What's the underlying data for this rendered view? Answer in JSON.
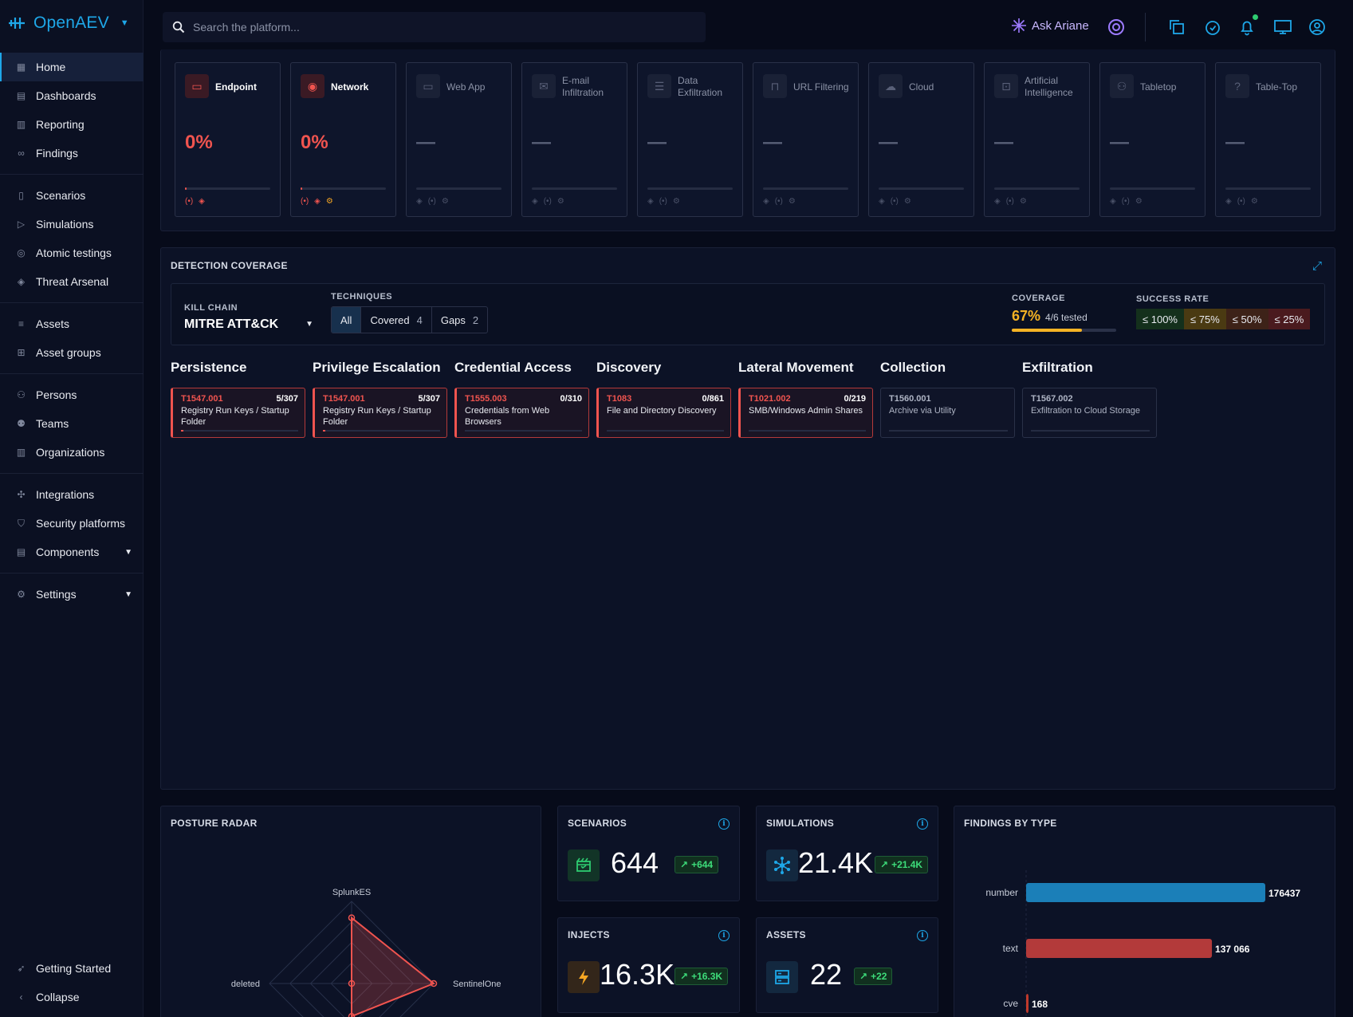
{
  "app": {
    "name": "OpenAEV"
  },
  "sidebar": {
    "groups": [
      [
        {
          "label": "Home",
          "icon": "grid-icon",
          "active": true
        },
        {
          "label": "Dashboards",
          "icon": "dashboard-icon"
        },
        {
          "label": "Reporting",
          "icon": "report-icon"
        },
        {
          "label": "Findings",
          "icon": "binoculars-icon"
        }
      ],
      [
        {
          "label": "Scenarios",
          "icon": "movie-icon"
        },
        {
          "label": "Simulations",
          "icon": "play-icon"
        },
        {
          "label": "Atomic testings",
          "icon": "target-icon"
        },
        {
          "label": "Threat Arsenal",
          "icon": "layers-icon"
        }
      ],
      [
        {
          "label": "Assets",
          "icon": "server-icon"
        },
        {
          "label": "Asset groups",
          "icon": "group-icon"
        }
      ],
      [
        {
          "label": "Persons",
          "icon": "person-icon"
        },
        {
          "label": "Teams",
          "icon": "team-icon"
        },
        {
          "label": "Organizations",
          "icon": "building-icon"
        }
      ],
      [
        {
          "label": "Integrations",
          "icon": "puzzle-icon"
        },
        {
          "label": "Security platforms",
          "icon": "shield-icon"
        },
        {
          "label": "Components",
          "icon": "components-icon",
          "caret": true
        }
      ],
      [
        {
          "label": "Settings",
          "icon": "gear-icon",
          "caret": true
        }
      ]
    ],
    "bottom": [
      {
        "label": "Getting Started",
        "icon": "rocket-icon"
      },
      {
        "label": "Collapse",
        "icon": "chevron-left-icon"
      }
    ]
  },
  "topbar": {
    "search_placeholder": "Search the platform...",
    "ask_label": "Ask Ariane"
  },
  "domains": [
    {
      "name": "Endpoint",
      "value": "0%",
      "hot": true,
      "icon": "desktop-icon",
      "status": [
        "(•)",
        "◈"
      ]
    },
    {
      "name": "Network",
      "value": "0%",
      "hot": true,
      "icon": "globe-icon",
      "status": [
        "(•)",
        "◈",
        "⚙"
      ]
    },
    {
      "name": "Web App",
      "value": "—",
      "hot": false,
      "icon": "window-icon"
    },
    {
      "name": "E-mail Infiltration",
      "value": "—",
      "hot": false,
      "icon": "mail-icon"
    },
    {
      "name": "Data Exfiltration",
      "value": "—",
      "hot": false,
      "icon": "list-icon"
    },
    {
      "name": "URL Filtering",
      "value": "—",
      "hot": false,
      "icon": "lock-icon"
    },
    {
      "name": "Cloud",
      "value": "—",
      "hot": false,
      "icon": "cloud-icon"
    },
    {
      "name": "Artificial Intelligence",
      "value": "—",
      "hot": false,
      "icon": "robot-icon"
    },
    {
      "name": "Tabletop",
      "value": "—",
      "hot": false,
      "icon": "people-icon"
    },
    {
      "name": "Table-Top",
      "value": "—",
      "hot": false,
      "icon": "question-icon"
    }
  ],
  "detection": {
    "title": "DETECTION COVERAGE",
    "kill_chain_label": "KILL CHAIN",
    "kill_chain_value": "MITRE ATT&CK",
    "techniques_label": "TECHNIQUES",
    "filters": [
      {
        "label": "All",
        "count": "",
        "active": true
      },
      {
        "label": "Covered",
        "count": "4"
      },
      {
        "label": "Gaps",
        "count": "2"
      }
    ],
    "coverage_label": "COVERAGE",
    "coverage_value": "67%",
    "coverage_detail": "4/6 tested",
    "coverage_fraction": 0.67,
    "success_label": "SUCCESS RATE",
    "success_chips": [
      {
        "label": "≤ 100%",
        "color": "#14301c"
      },
      {
        "label": "≤ 75%",
        "color": "#4a3a12"
      },
      {
        "label": "≤ 50%",
        "color": "#3d2218"
      },
      {
        "label": "≤ 25%",
        "color": "#4a1a1e"
      }
    ],
    "tactics": [
      {
        "name": "Persistence",
        "tech": {
          "id": "T1547.001",
          "count": "5/307",
          "name": "Registry Run Keys / Startup Folder",
          "status": "fail",
          "fill": 0.016
        }
      },
      {
        "name": "Privilege Escalation",
        "tech": {
          "id": "T1547.001",
          "count": "5/307",
          "name": "Registry Run Keys / Startup Folder",
          "status": "fail",
          "fill": 0.016
        }
      },
      {
        "name": "Credential Access",
        "tech": {
          "id": "T1555.003",
          "count": "0/310",
          "name": "Credentials from Web Browsers",
          "status": "fail",
          "fill": 0
        }
      },
      {
        "name": "Discovery",
        "tech": {
          "id": "T1083",
          "count": "0/861",
          "name": "File and Directory Discovery",
          "status": "fail",
          "fill": 0
        }
      },
      {
        "name": "Lateral Movement",
        "tech": {
          "id": "T1021.002",
          "count": "0/219",
          "name": "SMB/Windows Admin Shares",
          "status": "fail",
          "fill": 0
        }
      },
      {
        "name": "Collection",
        "tech": {
          "id": "T1560.001",
          "count": "",
          "name": "Archive via Utility",
          "status": "neutral",
          "fill": 0
        }
      },
      {
        "name": "Exfiltration",
        "tech": {
          "id": "T1567.002",
          "count": "",
          "name": "Exfiltration to Cloud Storage",
          "status": "neutral",
          "fill": 0
        }
      }
    ]
  },
  "posture": {
    "title": "POSTURE RADAR",
    "axes": [
      "SplunkES",
      "SentinelOne",
      "deleted"
    ]
  },
  "kpis": {
    "scenarios": {
      "title": "SCENARIOS",
      "value": "644",
      "delta": "+644"
    },
    "simulations": {
      "title": "SIMULATIONS",
      "value": "21.4K",
      "delta": "+21.4K"
    },
    "injects": {
      "title": "INJECTS",
      "value": "16.3K",
      "delta": "+16.3K"
    },
    "assets": {
      "title": "ASSETS",
      "value": "22",
      "delta": "+22"
    }
  },
  "chart_data": {
    "type": "bar",
    "title": "FINDINGS BY TYPE",
    "orientation": "horizontal",
    "categories": [
      "number",
      "text",
      "cve"
    ],
    "values": [
      176437,
      137066,
      168
    ],
    "value_labels": [
      "176437",
      "137 066",
      "168"
    ],
    "colors": [
      "#1b7fb8",
      "#b33a3a",
      "#c0392b"
    ]
  }
}
